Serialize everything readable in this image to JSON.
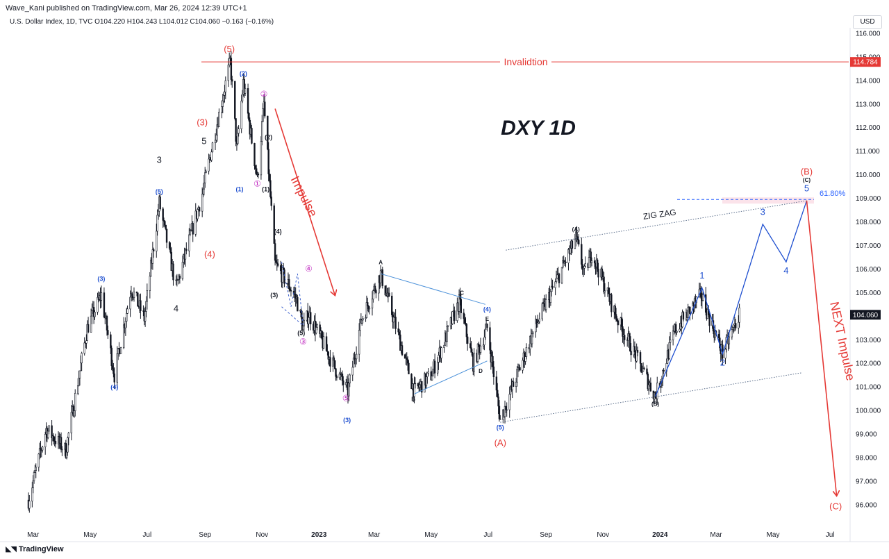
{
  "header": {
    "publisher": "Wave_Kani published on TradingView.com, Mar 26, 2024 12:39 UTC+1",
    "legend": "U.S. Dollar Index, 1D, TVC  O104.220  H104.243  L104.012  C104.060  −0.163  (−0.16%)",
    "currency": "USD"
  },
  "footer": {
    "brand": "TradingView",
    "logo_icon": "tradingview-logo-icon"
  },
  "chart_data": {
    "type": "candlestick",
    "title": "DXY 1D",
    "ylim": [
      95.5,
      116.8
    ],
    "y_ticks": [
      "96.000",
      "97.000",
      "98.000",
      "99.000",
      "100.000",
      "101.000",
      "102.000",
      "103.000",
      "104.000",
      "105.000",
      "106.000",
      "107.000",
      "108.000",
      "109.000",
      "110.000",
      "111.000",
      "112.000",
      "113.000",
      "114.000",
      "115.000",
      "116.000"
    ],
    "x_ticks": [
      "Mar",
      "May",
      "Jul",
      "Sep",
      "Nov",
      "2023",
      "Mar",
      "May",
      "Jul",
      "Sep",
      "Nov",
      "2024",
      "Mar",
      "May",
      "Jul"
    ],
    "x_tick_dates": [
      "2022-03-01",
      "2022-05-01",
      "2022-07-01",
      "2022-09-01",
      "2022-11-01",
      "2023-01-01",
      "2023-03-01",
      "2023-05-01",
      "2023-07-01",
      "2023-09-01",
      "2023-11-01",
      "2024-01-01",
      "2024-03-01",
      "2024-05-01",
      "2024-07-01"
    ],
    "price_path": [
      [
        "2022-02-24",
        96.2
      ],
      [
        "2022-03-15",
        99.2
      ],
      [
        "2022-04-05",
        98.3
      ],
      [
        "2022-04-28",
        103.5
      ],
      [
        "2022-05-13",
        104.9
      ],
      [
        "2022-05-27",
        101.5
      ],
      [
        "2022-06-14",
        105.2
      ],
      [
        "2022-06-28",
        103.9
      ],
      [
        "2022-07-14",
        108.8
      ],
      [
        "2022-08-01",
        105.2
      ],
      [
        "2022-08-29",
        109.2
      ],
      [
        "2022-09-28",
        114.8
      ],
      [
        "2022-10-05",
        111.1
      ],
      [
        "2022-10-12",
        113.9
      ],
      [
        "2022-10-27",
        109.8
      ],
      [
        "2022-11-03",
        113.0
      ],
      [
        "2022-11-15",
        106.2
      ],
      [
        "2022-11-30",
        105.3
      ],
      [
        "2022-12-08",
        104.7
      ],
      [
        "2022-12-15",
        103.5
      ],
      [
        "2022-12-21",
        104.1
      ],
      [
        "2023-01-18",
        101.8
      ],
      [
        "2023-02-01",
        100.8
      ],
      [
        "2023-02-15",
        103.8
      ],
      [
        "2023-03-08",
        105.8
      ],
      [
        "2023-04-13",
        100.8
      ],
      [
        "2023-05-01",
        101.5
      ],
      [
        "2023-05-31",
        104.6
      ],
      [
        "2023-06-15",
        102.0
      ],
      [
        "2023-06-30",
        103.5
      ],
      [
        "2023-07-14",
        99.6
      ],
      [
        "2023-08-20",
        103.5
      ],
      [
        "2023-10-03",
        107.3
      ],
      [
        "2023-10-12",
        105.8
      ],
      [
        "2023-10-20",
        106.7
      ],
      [
        "2023-11-15",
        104.0
      ],
      [
        "2023-12-27",
        100.6
      ],
      [
        "2024-01-17",
        103.4
      ],
      [
        "2024-02-14",
        104.9
      ],
      [
        "2024-03-08",
        102.4
      ],
      [
        "2024-03-26",
        104.06
      ]
    ],
    "last_price": "104.060",
    "invalidation": {
      "value": 114.784,
      "label": "Invalidtion",
      "price_label": "114.784"
    },
    "fib": {
      "value": 108.95,
      "label": "61.80%"
    },
    "projection_path": [
      [
        "2023-12-27",
        100.6
      ],
      [
        "2024-02-15",
        105.2
      ],
      [
        "2024-03-08",
        102.4
      ],
      [
        "2024-04-20",
        107.9
      ],
      [
        "2024-05-15",
        106.3
      ],
      [
        "2024-06-06",
        108.9
      ]
    ],
    "c_wave_path": [
      [
        "2024-06-06",
        108.9
      ],
      [
        "2024-07-08",
        96.4
      ]
    ],
    "impulse_arrow": [
      [
        "2022-11-15",
        112.8
      ],
      [
        "2023-01-18",
        104.9
      ]
    ],
    "triangle_upper": [
      [
        "2023-03-08",
        105.8
      ],
      [
        "2023-06-28",
        104.5
      ]
    ],
    "triangle_lower": [
      [
        "2023-04-13",
        100.7
      ],
      [
        "2023-06-30",
        102.1
      ]
    ],
    "zigzag_upper": [
      [
        "2023-07-20",
        106.8
      ],
      [
        "2024-06-06",
        108.9
      ]
    ],
    "zigzag_lower": [
      [
        "2023-07-14",
        99.5
      ],
      [
        "2024-06-01",
        101.6
      ]
    ],
    "subwave_dash": [
      [
        "2022-11-22",
        104.4
      ],
      [
        "2022-12-15",
        103.6
      ],
      [
        "2022-12-09",
        105.8
      ],
      [
        "2022-12-02",
        104.4
      ],
      [
        "2022-11-22",
        106.3
      ]
    ],
    "labels": [
      {
        "text": "(5)",
        "date": "2022-09-27",
        "y": 115.2,
        "color": "#e53935",
        "size": 13
      },
      {
        "text": "(3)",
        "date": "2022-08-29",
        "y": 112.1,
        "color": "#e53935",
        "size": 13
      },
      {
        "text": "(4)",
        "date": "2022-09-06",
        "y": 106.5,
        "color": "#e53935",
        "size": 13
      },
      {
        "text": "5",
        "date": "2022-08-31",
        "y": 111.3,
        "color": "#131722",
        "size": 13
      },
      {
        "text": "3",
        "date": "2022-07-14",
        "y": 110.5,
        "color": "#131722",
        "size": 13
      },
      {
        "text": "4",
        "date": "2022-08-01",
        "y": 104.2,
        "color": "#131722",
        "size": 13
      },
      {
        "text": "(2)",
        "date": "2022-10-12",
        "y": 114.2,
        "color": "#1e4fd0",
        "size": 9
      },
      {
        "text": "(5)",
        "date": "2022-07-14",
        "y": 109.2,
        "color": "#1e4fd0",
        "size": 9
      },
      {
        "text": "(3)",
        "date": "2022-05-13",
        "y": 105.5,
        "color": "#1e4fd0",
        "size": 9
      },
      {
        "text": "(4)",
        "date": "2022-05-27",
        "y": 100.9,
        "color": "#1e4fd0",
        "size": 9
      },
      {
        "text": "(1)",
        "date": "2022-10-08",
        "y": 109.3,
        "color": "#1e4fd0",
        "size": 9
      },
      {
        "text": "②",
        "date": "2022-11-03",
        "y": 113.3,
        "color": "#c02cc0",
        "size": 12
      },
      {
        "text": "①",
        "date": "2022-10-27",
        "y": 109.5,
        "color": "#c02cc0",
        "size": 12
      },
      {
        "text": "④",
        "date": "2022-12-21",
        "y": 105.9,
        "color": "#c02cc0",
        "size": 12
      },
      {
        "text": "③",
        "date": "2022-12-15",
        "y": 102.8,
        "color": "#c02cc0",
        "size": 12
      },
      {
        "text": "⑤",
        "date": "2023-01-30",
        "y": 100.4,
        "color": "#c02cc0",
        "size": 12
      },
      {
        "text": "(2)",
        "date": "2022-11-08",
        "y": 111.5,
        "color": "#131722",
        "size": 9
      },
      {
        "text": "(1)",
        "date": "2022-11-05",
        "y": 109.3,
        "color": "#131722",
        "size": 9
      },
      {
        "text": "(4)",
        "date": "2022-11-18",
        "y": 107.5,
        "color": "#131722",
        "size": 9
      },
      {
        "text": "(3)",
        "date": "2022-11-14",
        "y": 104.8,
        "color": "#131722",
        "size": 9
      },
      {
        "text": "(5)",
        "date": "2022-12-13",
        "y": 103.2,
        "color": "#131722",
        "size": 9
      },
      {
        "text": "(3)",
        "date": "2023-01-31",
        "y": 99.5,
        "color": "#1e4fd0",
        "size": 9
      },
      {
        "text": "A",
        "date": "2023-03-08",
        "y": 106.2,
        "color": "#131722",
        "size": 8
      },
      {
        "text": "B",
        "date": "2023-04-12",
        "y": 100.4,
        "color": "#131722",
        "size": 8
      },
      {
        "text": "C",
        "date": "2023-06-03",
        "y": 104.9,
        "color": "#131722",
        "size": 8
      },
      {
        "text": "D",
        "date": "2023-06-23",
        "y": 101.6,
        "color": "#131722",
        "size": 8
      },
      {
        "text": "E",
        "date": "2023-06-30",
        "y": 103.8,
        "color": "#131722",
        "size": 8
      },
      {
        "text": "(4)",
        "date": "2023-06-30",
        "y": 104.2,
        "color": "#1e4fd0",
        "size": 9
      },
      {
        "text": "(5)",
        "date": "2023-07-14",
        "y": 99.2,
        "color": "#1e4fd0",
        "size": 9
      },
      {
        "text": "(A)",
        "date": "2023-07-14",
        "y": 98.5,
        "color": "#e53935",
        "size": 13
      },
      {
        "text": "(A)",
        "date": "2023-10-03",
        "y": 107.6,
        "color": "#131722",
        "size": 8
      },
      {
        "text": "(B)",
        "date": "2023-12-27",
        "y": 100.2,
        "color": "#131722",
        "size": 8
      },
      {
        "text": "1",
        "date": "2024-02-15",
        "y": 105.6,
        "color": "#1e4fd0",
        "size": 13
      },
      {
        "text": "2",
        "date": "2024-03-08",
        "y": 101.9,
        "color": "#1e4fd0",
        "size": 13
      },
      {
        "text": "3",
        "date": "2024-04-20",
        "y": 108.3,
        "color": "#1e4fd0",
        "size": 13
      },
      {
        "text": "4",
        "date": "2024-05-15",
        "y": 105.8,
        "color": "#1e4fd0",
        "size": 13
      },
      {
        "text": "5",
        "date": "2024-06-06",
        "y": 109.3,
        "color": "#1e4fd0",
        "size": 13
      },
      {
        "text": "(C)",
        "date": "2024-06-06",
        "y": 109.7,
        "color": "#131722",
        "size": 8
      },
      {
        "text": "(B)",
        "date": "2024-06-06",
        "y": 110.0,
        "color": "#e53935",
        "size": 13
      },
      {
        "text": "(C)",
        "date": "2024-07-07",
        "y": 95.8,
        "color": "#e53935",
        "size": 13
      }
    ],
    "rotated_labels": [
      {
        "text": "Impulse",
        "date": "2022-12-12",
        "y": 109.0,
        "angle": 63,
        "color": "#e53935",
        "size": 18
      },
      {
        "text": "NEXT Impulse",
        "date": "2024-07-10",
        "y": 102.9,
        "angle": 78,
        "color": "#e53935",
        "size": 18
      },
      {
        "text": "ZIG ZAG",
        "date": "2024-01-01",
        "y": 108.2,
        "angle": -8,
        "color": "#131722",
        "size": 12
      }
    ]
  },
  "colors": {
    "candle": "#131722",
    "annotation_red": "#e53935",
    "annotation_blue": "#1e4fd0",
    "channel_line": "#5a6d8a",
    "fib_line": "#2962ff"
  }
}
